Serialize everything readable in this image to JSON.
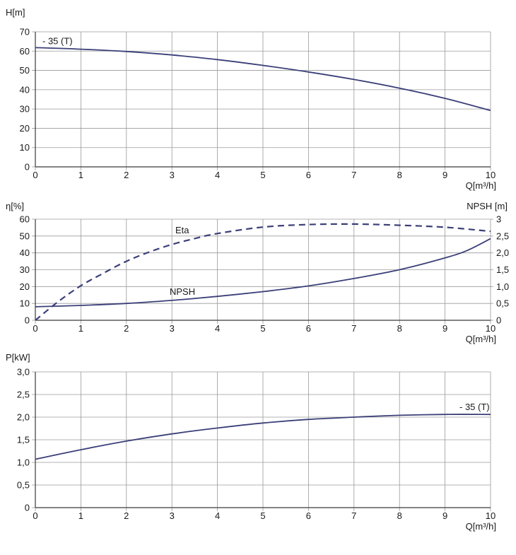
{
  "style": {
    "curve_color": "#3b3f78",
    "grid_color": "#9a9a9a",
    "axis_color": "#3a3a3a"
  },
  "chart_data": [
    {
      "id": "head",
      "type": "line",
      "ylabel": "H[m]",
      "xlabel": "Q[m³/h]",
      "xlim": [
        0,
        10
      ],
      "ylim": [
        0,
        70
      ],
      "xticks": [
        "0",
        "1",
        "2",
        "3",
        "4",
        "5",
        "6",
        "7",
        "8",
        "9",
        "10"
      ],
      "yticks": [
        "0",
        "10",
        "20",
        "30",
        "40",
        "50",
        "60",
        "70"
      ],
      "grid": true,
      "series": [
        {
          "name": "- 35 (T)",
          "style": "solid",
          "x": [
            0,
            1,
            2,
            3,
            4,
            5,
            6,
            7,
            8,
            9,
            10
          ],
          "y": [
            61.8,
            61.0,
            59.8,
            58.0,
            55.6,
            52.6,
            49.2,
            45.3,
            40.8,
            35.5,
            29.2
          ]
        }
      ]
    },
    {
      "id": "eta_npsh",
      "type": "line",
      "ylabel": "η[%]",
      "ylabel_right": "NPSH [m]",
      "xlabel": "Q[m³/h]",
      "xlim": [
        0,
        10
      ],
      "ylim": [
        0,
        60
      ],
      "ylim_right": [
        0,
        3
      ],
      "xticks": [
        "0",
        "1",
        "2",
        "3",
        "4",
        "5",
        "6",
        "7",
        "8",
        "9",
        "10"
      ],
      "yticks": [
        "0",
        "10",
        "20",
        "30",
        "40",
        "50",
        "60"
      ],
      "yticks_right": [
        "0",
        "0,5",
        "1,0",
        "1,5",
        "2,0",
        "2,5",
        "3"
      ],
      "grid": true,
      "series": [
        {
          "name": "Eta",
          "axis": "left",
          "style": "dashed",
          "x": [
            0,
            0.5,
            1,
            1.5,
            2,
            2.5,
            3,
            3.5,
            4,
            5,
            6,
            7,
            8,
            9,
            10
          ],
          "y": [
            0,
            11,
            20.5,
            28,
            35,
            40.5,
            45,
            48.5,
            51.5,
            55.3,
            56.8,
            57.1,
            56.4,
            55.2,
            52.8
          ]
        },
        {
          "name": "NPSH",
          "axis": "right",
          "style": "solid",
          "x": [
            0,
            1,
            2,
            3,
            4,
            5,
            6,
            7,
            8,
            9,
            9.5,
            10
          ],
          "y": [
            0.4,
            0.44,
            0.5,
            0.59,
            0.71,
            0.85,
            1.02,
            1.24,
            1.5,
            1.85,
            2.08,
            2.42
          ]
        }
      ]
    },
    {
      "id": "power",
      "type": "line",
      "ylabel": "P[kW]",
      "xlabel": "Q[m³/h]",
      "xlim": [
        0,
        10
      ],
      "ylim": [
        0,
        3
      ],
      "xticks": [
        "0",
        "1",
        "2",
        "3",
        "4",
        "5",
        "6",
        "7",
        "8",
        "9",
        "10"
      ],
      "yticks": [
        "0",
        "0,5",
        "1,0",
        "1,5",
        "2,0",
        "2,5",
        "3,0"
      ],
      "grid": true,
      "series": [
        {
          "name": "- 35 (T)",
          "style": "solid",
          "x": [
            0,
            1,
            2,
            3,
            4,
            5,
            6,
            7,
            8,
            9,
            10
          ],
          "y": [
            1.07,
            1.28,
            1.47,
            1.63,
            1.76,
            1.87,
            1.95,
            2.0,
            2.04,
            2.06,
            2.06
          ]
        }
      ]
    }
  ]
}
